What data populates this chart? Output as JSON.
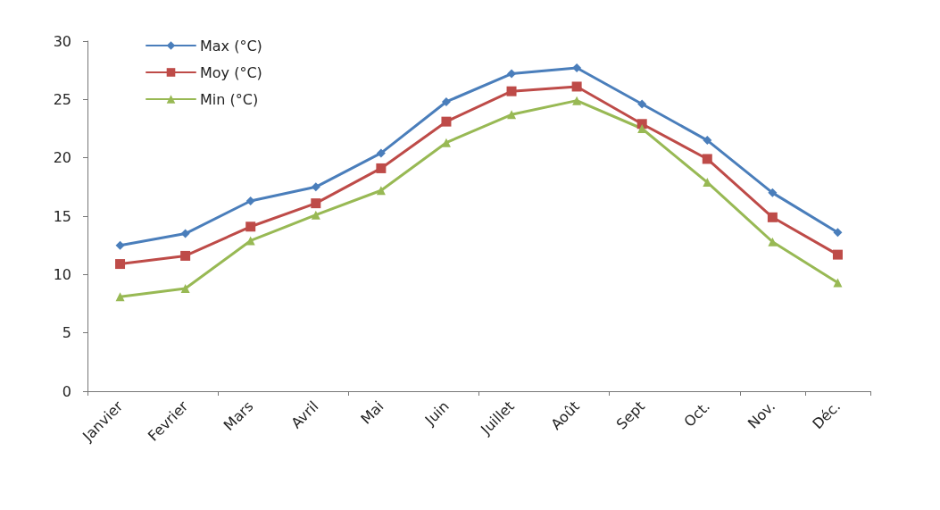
{
  "chart_data": {
    "type": "line",
    "categories": [
      "Janvier",
      "Fevrier",
      "Mars",
      "Avril",
      "Mai",
      "Juin",
      "Juillet",
      "Août",
      "Sept",
      "Oct.",
      "Nov.",
      "Déc."
    ],
    "series": [
      {
        "name": "Max (°C)",
        "color": "#4a7ebb",
        "marker": "diamond",
        "values": [
          12.5,
          13.5,
          16.3,
          17.5,
          20.4,
          24.8,
          27.2,
          27.7,
          24.6,
          21.5,
          17.0,
          13.6
        ]
      },
      {
        "name": "Moy (°C)",
        "color": "#be4b48",
        "marker": "square",
        "values": [
          10.9,
          11.6,
          14.1,
          16.1,
          19.1,
          23.1,
          25.7,
          26.1,
          22.9,
          19.9,
          14.9,
          11.7
        ]
      },
      {
        "name": "Min (°C)",
        "color": "#98b954",
        "marker": "triangle",
        "values": [
          8.1,
          8.8,
          12.9,
          15.1,
          17.2,
          21.3,
          23.7,
          24.9,
          22.5,
          17.9,
          12.8,
          9.3
        ]
      }
    ],
    "ylim": [
      0,
      30
    ],
    "yticks": [
      0,
      5,
      10,
      15,
      20,
      25,
      30
    ],
    "grid": false,
    "legend": "top left",
    "line_style": "solid"
  }
}
